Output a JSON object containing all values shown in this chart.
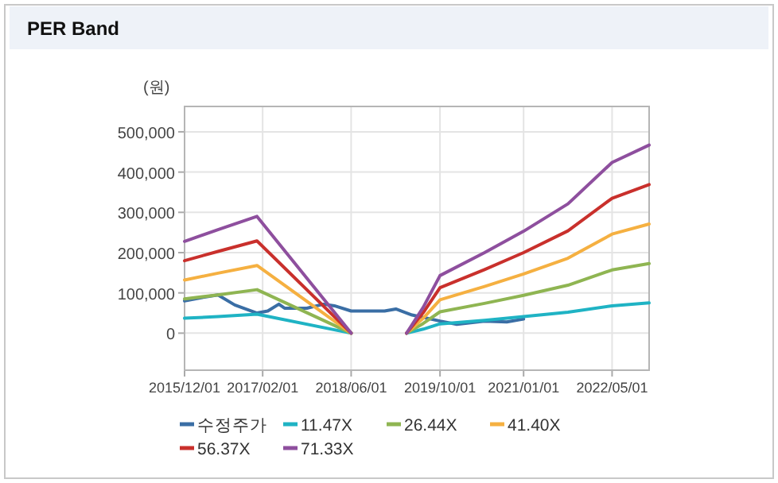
{
  "chart_data": {
    "type": "line",
    "title": "PER Band",
    "ylabel": "(원)",
    "grid": true,
    "legend": "bottom",
    "marker": "none",
    "line_style": "solid",
    "xlim": [
      "2015-12-01",
      "2022-11-20"
    ],
    "xticks": [
      {
        "value": "2015-12-01",
        "label": "2015/12/01"
      },
      {
        "value": "2017-02-01",
        "label": "2017/02/01"
      },
      {
        "value": "2018-06-01",
        "label": "2018/06/01"
      },
      {
        "value": "2019-10-01",
        "label": "2019/10/01"
      },
      {
        "value": "2021-01-01",
        "label": "2021/01/01"
      },
      {
        "value": "2022-05-01",
        "label": "2022/05/01"
      }
    ],
    "ylim": [
      -92000,
      563000
    ],
    "yticks": [
      {
        "value": 0,
        "label": "0"
      },
      {
        "value": 100000,
        "label": "100,000"
      },
      {
        "value": 200000,
        "label": "200,000"
      },
      {
        "value": 300000,
        "label": "300,000"
      },
      {
        "value": 400000,
        "label": "400,000"
      },
      {
        "value": 500000,
        "label": "500,000"
      }
    ],
    "x": [
      "2015-12-01",
      "2016-06-01",
      "2017-01-01",
      "2018-06-01",
      "2018-12-01",
      "2019-04-01",
      "2019-07-01",
      "2019-10-01",
      "2020-06-01",
      "2021-01-01",
      "2021-09-01",
      "2022-05-01",
      "2022-11-20"
    ],
    "series": [
      {
        "name": "수정주가",
        "color": "#3a6ea5",
        "x": [
          "2015-12-01",
          "2016-03-01",
          "2016-06-01",
          "2016-09-01",
          "2017-01-01",
          "2017-03-01",
          "2017-05-01",
          "2017-06-01",
          "2017-10-01",
          "2018-01-01",
          "2018-03-01",
          "2018-06-01",
          "2018-12-01",
          "2019-02-01",
          "2019-05-01",
          "2019-10-01",
          "2020-01-01",
          "2020-06-01",
          "2020-10-01",
          "2021-01-01"
        ],
        "values": [
          80000,
          88000,
          95000,
          70000,
          50000,
          55000,
          72000,
          62000,
          62000,
          72000,
          68000,
          55000,
          55000,
          60000,
          45000,
          30000,
          22000,
          30000,
          28000,
          35000
        ]
      },
      {
        "name": "11.47X",
        "color": "#1fb3c4",
        "values": [
          37000,
          41000,
          47000,
          0,
          null,
          0,
          10000,
          23000,
          32000,
          41000,
          52000,
          68000,
          75000
        ]
      },
      {
        "name": "26.44X",
        "color": "#8fb552",
        "values": [
          85000,
          95000,
          108000,
          0,
          null,
          0,
          24000,
          53000,
          74000,
          94000,
          119000,
          157000,
          173000
        ]
      },
      {
        "name": "41.40X",
        "color": "#f5b041",
        "values": [
          132000,
          149000,
          168000,
          0,
          null,
          0,
          37000,
          83000,
          116000,
          147000,
          186000,
          246000,
          271000
        ]
      },
      {
        "name": "56.37X",
        "color": "#c9302c",
        "values": [
          180000,
          203000,
          229000,
          0,
          null,
          0,
          51000,
          113000,
          158000,
          200000,
          254000,
          335000,
          369000
        ]
      },
      {
        "name": "71.33X",
        "color": "#8e4f9e",
        "values": [
          228000,
          257000,
          290000,
          0,
          null,
          0,
          64000,
          143000,
          200000,
          253000,
          321000,
          424000,
          467000
        ]
      }
    ]
  }
}
